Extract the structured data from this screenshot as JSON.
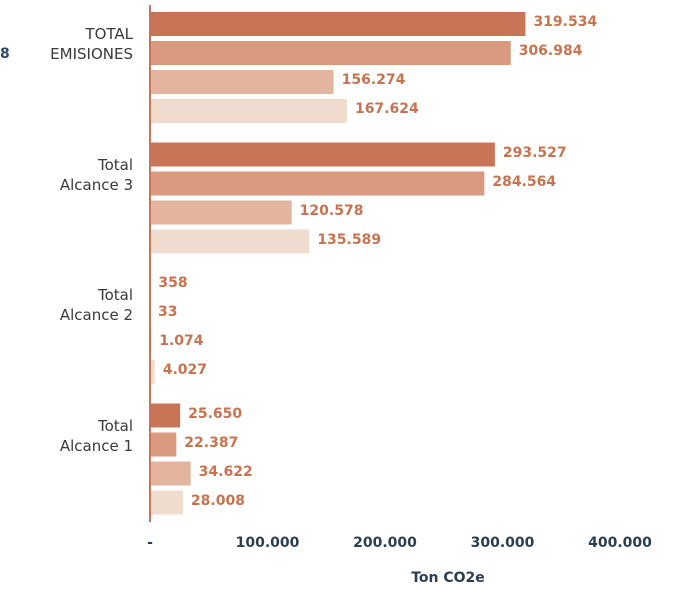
{
  "chart_data": {
    "type": "bar",
    "orientation": "horizontal",
    "categories": [
      "TOTAL EMISIONES",
      "Total Alcance 3",
      "Total Alcance 2",
      "Total Alcance 1"
    ],
    "series": [
      {
        "color": "#c87456",
        "values": [
          319534,
          293527,
          358,
          25650
        ],
        "value_labels": [
          "319.534",
          "293.527",
          "358",
          "25.650"
        ]
      },
      {
        "color": "#d99a80",
        "values": [
          306984,
          284564,
          33,
          22387
        ],
        "value_labels": [
          "306.984",
          "284.564",
          "33",
          "22.387"
        ]
      },
      {
        "color": "#e3b59f",
        "values": [
          156274,
          120578,
          1074,
          34622
        ],
        "value_labels": [
          "156.274",
          "120.578",
          "1.074",
          "34.622"
        ]
      },
      {
        "color": "#f0dccf",
        "values": [
          167624,
          135589,
          4027,
          28008
        ],
        "value_labels": [
          "167.624",
          "135.589",
          "4.027",
          "28.008"
        ]
      }
    ],
    "xlim": [
      0,
      400000
    ],
    "xticks": [
      {
        "value": 0,
        "label": "-"
      },
      {
        "value": 100000,
        "label": "100.000"
      },
      {
        "value": 200000,
        "label": "200.000"
      },
      {
        "value": 300000,
        "label": "300.000"
      },
      {
        "value": 400000,
        "label": "400.000"
      }
    ],
    "xlabel": "Ton CO2e",
    "annotations": [
      "8"
    ],
    "value_label_color": "#c8734f"
  }
}
